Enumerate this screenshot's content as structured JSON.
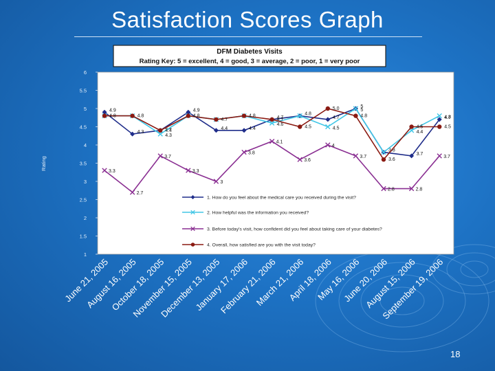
{
  "slide": {
    "title": "Satisfaction Scores Graph",
    "page_number": "18"
  },
  "colors": {
    "background": "#1c6fc0",
    "plot_bg": "#ffffff",
    "q1": "#1f2d8a",
    "q2": "#41c6e6",
    "q3": "#8a2f92",
    "q4": "#8a1a12"
  },
  "chart_data": {
    "type": "line",
    "header": [
      "DFM Diabetes  Visits",
      "Rating Key:   5 = excellent, 4 = good, 3 = average, 2 = poor, 1 = very poor"
    ],
    "ylabel": "Rating",
    "xlabel": "",
    "ylim": [
      1,
      6
    ],
    "yticks": [
      "1",
      "1.5",
      "2",
      "2.5",
      "3",
      "3.5",
      "4",
      "4.5",
      "5",
      "5.5",
      "6"
    ],
    "categories": [
      "June 21, 2005",
      "August 16, 2005",
      "October 18, 2005",
      "November 15, 2005",
      "December 13, 2005",
      "January 17, 2006",
      "February 21, 2006",
      "March 21, 2006",
      "April 18, 2006",
      "May 16, 2006",
      "June 20, 2006",
      "August 15, 2006",
      "September 19, 2006"
    ],
    "legend_position": "bottom-right inside plot",
    "series": [
      {
        "name": "1. How do you feel about the medical care you received during the visit?",
        "color": "#1f2d8a",
        "marker": "diamond",
        "values": [
          4.9,
          4.3,
          4.4,
          4.9,
          4.4,
          4.4,
          4.7,
          4.8,
          4.7,
          5.0,
          3.8,
          3.7,
          4.7
        ],
        "labels": [
          "4.9",
          "4.3",
          "4.4",
          "4.9",
          "4.4",
          "4.4",
          "4.7",
          "4.8",
          "4.7",
          "5",
          "3.8",
          "3.7",
          "4.7"
        ]
      },
      {
        "name": "2. How helpful was the information you received?",
        "color": "#41c6e6",
        "marker": "x",
        "values": [
          4.8,
          4.8,
          4.3,
          4.8,
          4.7,
          4.8,
          4.6,
          4.8,
          4.5,
          5.0,
          3.8,
          4.4,
          4.8
        ],
        "labels": [
          "",
          "",
          "4.3",
          "",
          "",
          "",
          "4.6",
          "",
          "4.5",
          "5",
          "",
          "4.4",
          "4.8"
        ]
      },
      {
        "name": "3. Before today's visit, how confident did you feel about taking care of your diabetes?",
        "color": "#8a2f92",
        "marker": "x",
        "values": [
          3.3,
          2.7,
          3.7,
          3.3,
          3.0,
          3.8,
          4.1,
          3.6,
          4.0,
          3.7,
          2.8,
          2.8,
          3.7
        ],
        "labels": [
          "3.3",
          "2.7",
          "3.7",
          "3.3",
          "3",
          "3.8",
          "4.1",
          "3.6",
          "4",
          "3.7",
          "2.8",
          "2.8",
          "3.7"
        ]
      },
      {
        "name": "4. Overall, how satisfied are you with the visit today?",
        "color": "#8a1a12",
        "marker": "circle",
        "values": [
          4.8,
          4.8,
          4.4,
          4.8,
          4.7,
          4.8,
          4.7,
          4.5,
          5.0,
          4.8,
          3.6,
          4.5,
          4.5
        ],
        "labels": [
          "4.8",
          "4.8",
          "4.4",
          "4.8",
          "4.7",
          "4.8",
          "4.7",
          "4.5",
          "5.0",
          "4.8",
          "3.6",
          "4.5",
          "4.5"
        ]
      }
    ]
  }
}
